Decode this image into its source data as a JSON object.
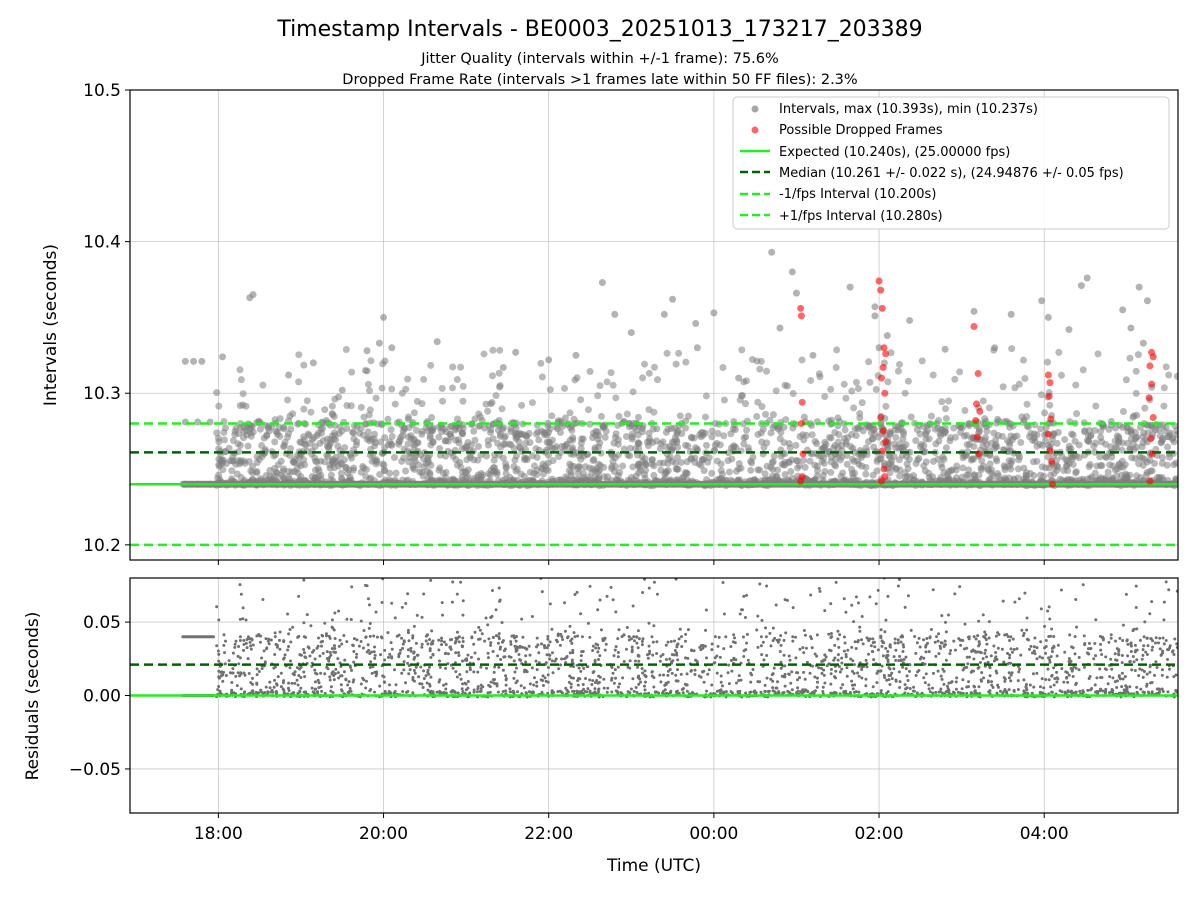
{
  "figure": {
    "title": "Timestamp Intervals - BE0003_20251013_173217_203389",
    "subtitle_jitter": "Jitter Quality (intervals within +/-1 frame): 75.6%",
    "subtitle_dropped": "Dropped Frame Rate (intervals >1 frames late within 50 FF files): 2.3%"
  },
  "chart_data": [
    {
      "type": "scatter",
      "panel": "intervals",
      "ylabel": "Intervals (seconds)",
      "ylim": [
        10.19,
        10.5
      ],
      "yticks": [
        10.2,
        10.3,
        10.4,
        10.5
      ],
      "ytick_labels": [
        "10.2",
        "10.3",
        "10.4",
        "10.5"
      ],
      "xlim_hours": [
        16.93,
        29.62
      ],
      "xticks_hours": [
        18,
        20,
        22,
        24,
        26,
        28
      ],
      "xtick_labels": [
        "18:00",
        "20:00",
        "22:00",
        "00:00",
        "02:00",
        "04:00"
      ],
      "grid": true,
      "legend_position": "upper right",
      "legend": [
        {
          "label": "Intervals, max (10.393s), min (10.237s)",
          "kind": "dot",
          "color": "#808080"
        },
        {
          "label": "Possible Dropped Frames",
          "kind": "dot",
          "color": "#ff0000"
        },
        {
          "label": "Expected (10.240s), (25.00000 fps)",
          "kind": "solid",
          "color": "#22ee22"
        },
        {
          "label": "Median (10.261 +/- 0.022 s), (24.94876 +/- 0.05 fps)",
          "kind": "dashed",
          "color": "#006400"
        },
        {
          "label": "-1/fps Interval (10.200s)",
          "kind": "dashed",
          "color": "#22ee22"
        },
        {
          "label": "+1/fps Interval (10.280s)",
          "kind": "dashed",
          "color": "#22ee22"
        }
      ],
      "reference_lines": [
        {
          "name": "Expected",
          "y": 10.24,
          "style": "solid",
          "color": "#22ee22"
        },
        {
          "name": "Median",
          "y": 10.261,
          "style": "dashed",
          "color": "#006400"
        },
        {
          "name": "-1/fps Interval",
          "y": 10.2,
          "style": "dashed",
          "color": "#22ee22"
        },
        {
          "name": "+1/fps Interval",
          "y": 10.28,
          "style": "dashed",
          "color": "#22ee22"
        }
      ],
      "series": [
        {
          "name": "Intervals",
          "color": "#808080",
          "x_start_hours": 17.57,
          "x_end_hours": 29.62,
          "points": [
            [
              17.6,
              10.321
            ],
            [
              17.7,
              10.321
            ],
            [
              17.8,
              10.321
            ],
            [
              17.6,
              10.281
            ],
            [
              17.75,
              10.281
            ],
            [
              17.9,
              10.281
            ],
            [
              17.6,
              10.24
            ],
            [
              17.75,
              10.24
            ],
            [
              17.9,
              10.24
            ],
            [
              18.42,
              10.365
            ],
            [
              18.38,
              10.363
            ],
            [
              18.05,
              10.324
            ],
            [
              19.95,
              10.333
            ],
            [
              20.0,
              10.35
            ],
            [
              20.65,
              10.334
            ],
            [
              21.6,
              10.327
            ],
            [
              22.33,
              10.325
            ],
            [
              22.65,
              10.373
            ],
            [
              22.8,
              10.352
            ],
            [
              23.5,
              10.362
            ],
            [
              23.4,
              10.352
            ],
            [
              24.0,
              10.353
            ],
            [
              24.7,
              10.393
            ],
            [
              24.95,
              10.38
            ],
            [
              25.0,
              10.366
            ],
            [
              25.65,
              10.37
            ],
            [
              25.95,
              10.357
            ],
            [
              25.95,
              10.351
            ],
            [
              26.37,
              10.348
            ],
            [
              27.15,
              10.354
            ],
            [
              27.6,
              10.352
            ],
            [
              27.97,
              10.361
            ],
            [
              28.05,
              10.35
            ],
            [
              28.45,
              10.371
            ],
            [
              28.52,
              10.376
            ],
            [
              28.3,
              10.342
            ],
            [
              28.95,
              10.355
            ],
            [
              29.15,
              10.37
            ],
            [
              29.25,
              10.361
            ],
            [
              29.2,
              10.333
            ],
            [
              29.05,
              10.343
            ],
            [
              24.8,
              10.343
            ],
            [
              23.78,
              10.346
            ],
            [
              23.8,
              10.33
            ],
            [
              21.45,
              10.317
            ],
            [
              20.1,
              10.33
            ],
            [
              19.8,
              10.328
            ],
            [
              19.15,
              10.32
            ],
            [
              18.85,
              10.312
            ],
            [
              26.8,
              10.329
            ],
            [
              27.4,
              10.33
            ],
            [
              26.1,
              10.338
            ],
            [
              26.0,
              10.33
            ],
            [
              25.2,
              10.325
            ],
            [
              24.3,
              10.31
            ],
            [
              23.0,
              10.34
            ],
            [
              22.0,
              10.322
            ],
            [
              19.5,
              10.302
            ]
          ]
        },
        {
          "name": "Possible Dropped Frames",
          "color": "#ff0000",
          "points": [
            [
              25.05,
              10.356
            ],
            [
              25.06,
              10.351
            ],
            [
              25.07,
              10.294
            ],
            [
              25.06,
              10.28
            ],
            [
              25.08,
              10.26
            ],
            [
              25.05,
              10.242
            ],
            [
              25.07,
              10.245
            ],
            [
              26.0,
              10.374
            ],
            [
              26.02,
              10.368
            ],
            [
              26.04,
              10.356
            ],
            [
              26.06,
              10.33
            ],
            [
              26.08,
              10.326
            ],
            [
              26.05,
              10.317
            ],
            [
              26.03,
              10.31
            ],
            [
              26.07,
              10.3
            ],
            [
              26.02,
              10.284
            ],
            [
              26.05,
              10.275
            ],
            [
              26.08,
              10.268
            ],
            [
              26.04,
              10.262
            ],
            [
              26.06,
              10.25
            ],
            [
              26.03,
              10.242
            ],
            [
              26.07,
              10.245
            ],
            [
              27.15,
              10.344
            ],
            [
              27.2,
              10.313
            ],
            [
              27.18,
              10.293
            ],
            [
              27.22,
              10.288
            ],
            [
              27.17,
              10.282
            ],
            [
              27.19,
              10.271
            ],
            [
              27.21,
              10.26
            ],
            [
              28.05,
              10.312
            ],
            [
              28.07,
              10.307
            ],
            [
              28.06,
              10.298
            ],
            [
              28.08,
              10.283
            ],
            [
              28.05,
              10.273
            ],
            [
              28.07,
              10.262
            ],
            [
              28.09,
              10.255
            ],
            [
              28.1,
              10.24
            ],
            [
              29.3,
              10.327
            ],
            [
              29.32,
              10.324
            ],
            [
              29.28,
              10.318
            ],
            [
              29.3,
              10.306
            ],
            [
              29.27,
              10.297
            ],
            [
              29.32,
              10.284
            ],
            [
              29.29,
              10.27
            ],
            [
              29.31,
              10.26
            ],
            [
              29.28,
              10.242
            ]
          ]
        }
      ]
    },
    {
      "type": "scatter",
      "panel": "residuals",
      "xlabel": "Time (UTC)",
      "ylabel": "Residuals (seconds)",
      "ylim": [
        -0.08,
        0.08
      ],
      "yticks": [
        -0.05,
        0.0,
        0.05
      ],
      "ytick_labels": [
        "−0.05",
        "0.00",
        "0.05"
      ],
      "xlim_hours": [
        16.93,
        29.62
      ],
      "xticks_hours": [
        18,
        20,
        22,
        24,
        26,
        28
      ],
      "xtick_labels": [
        "18:00",
        "20:00",
        "22:00",
        "00:00",
        "02:00",
        "04:00"
      ],
      "grid": true,
      "reference_lines": [
        {
          "name": "Expected",
          "y": 0.0,
          "style": "solid",
          "color": "#22ee22"
        },
        {
          "name": "Median",
          "y": 0.021,
          "style": "dashed",
          "color": "#006400"
        }
      ],
      "series": [
        {
          "name": "Residuals",
          "color": "#707070",
          "x_start_hours": 17.57,
          "x_end_hours": 29.62,
          "plateau_level": 0.04,
          "plateau_end_hours": 17.95
        }
      ]
    }
  ]
}
